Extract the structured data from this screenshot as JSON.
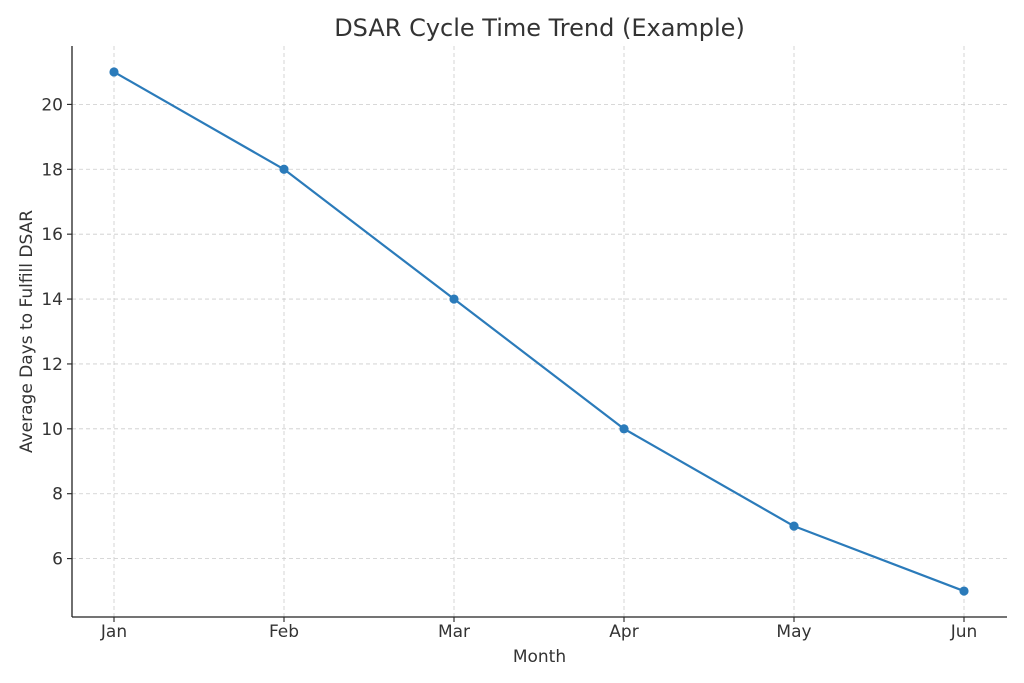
{
  "chart_data": {
    "type": "line",
    "title": "DSAR Cycle Time Trend (Example)",
    "xlabel": "Month",
    "ylabel": "Average Days to Fulfill DSAR",
    "categories": [
      "Jan",
      "Feb",
      "Mar",
      "Apr",
      "May",
      "Jun"
    ],
    "series": [
      {
        "values": [
          21,
          18,
          14,
          10,
          7,
          5
        ],
        "color": "#2b7bba",
        "marker": "circle"
      }
    ],
    "ylim": [
      4.2,
      21.8
    ],
    "yticks": [
      6,
      8,
      10,
      12,
      14,
      16,
      18,
      20
    ],
    "grid": true,
    "legend": "none"
  }
}
